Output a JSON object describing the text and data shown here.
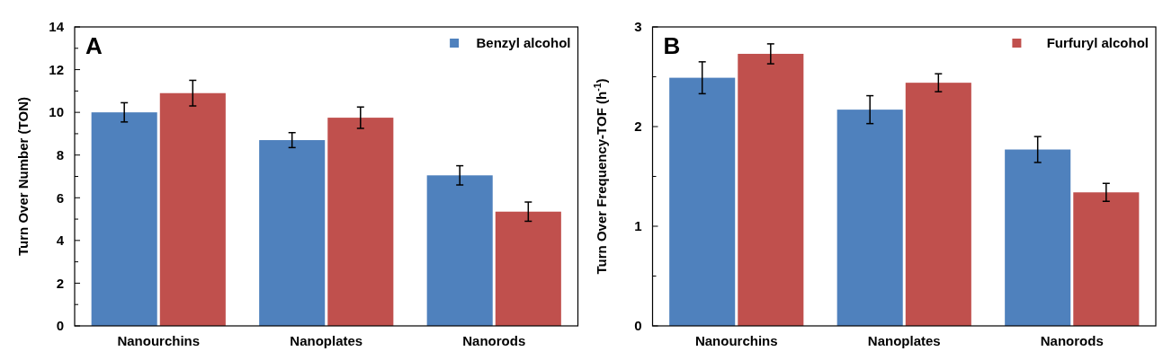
{
  "chart_data": [
    {
      "type": "bar",
      "ylabel": "Turn Over Number (TON)",
      "annotations": [
        "A"
      ],
      "categories": [
        "Nanourchins",
        "Nanoplates",
        "Nanorods"
      ],
      "series": [
        {
          "name": "Benzyl alcohol",
          "color": "#4f81bd",
          "values": [
            10.0,
            8.7,
            7.05
          ],
          "errors": [
            0.45,
            0.35,
            0.45
          ]
        },
        {
          "color": "#c0504d",
          "values": [
            10.9,
            9.75,
            5.35
          ],
          "errors": [
            0.6,
            0.5,
            0.45
          ]
        }
      ],
      "ylim": [
        0,
        14
      ],
      "yticks": [
        0,
        {
          "value": 1,
          "label": null
        },
        2,
        {
          "value": 3,
          "label": null
        },
        4,
        {
          "value": 5,
          "label": null
        },
        6,
        {
          "value": 7,
          "label": null
        },
        8,
        {
          "value": 9,
          "label": null
        },
        10,
        {
          "value": 11,
          "label": null
        },
        12,
        {
          "value": 13,
          "label": null
        },
        14
      ],
      "grid": false,
      "legend": "top right"
    },
    {
      "type": "bar",
      "ylabel": "Turn Over Frequency-TOF (h$^{-1}$)",
      "annotations": [
        "B"
      ],
      "categories": [
        "Nanourchins",
        "Nanoplates",
        "Nanorods"
      ],
      "series": [
        {
          "color": "#4f81bd",
          "values": [
            2.49,
            2.17,
            1.77
          ],
          "errors": [
            0.16,
            0.14,
            0.13
          ]
        },
        {
          "name": "Furfuryl alcohol",
          "color": "#c0504d",
          "values": [
            2.73,
            2.44,
            1.34
          ],
          "errors": [
            0.1,
            0.09,
            0.09
          ]
        }
      ],
      "ylim": [
        0,
        3
      ],
      "yticks": [
        0,
        {
          "value": 0.5,
          "label": null
        },
        1,
        {
          "value": 1.5,
          "label": null
        },
        2,
        {
          "value": 2.5,
          "label": null
        },
        3
      ],
      "grid": false,
      "legend": "top right"
    }
  ]
}
